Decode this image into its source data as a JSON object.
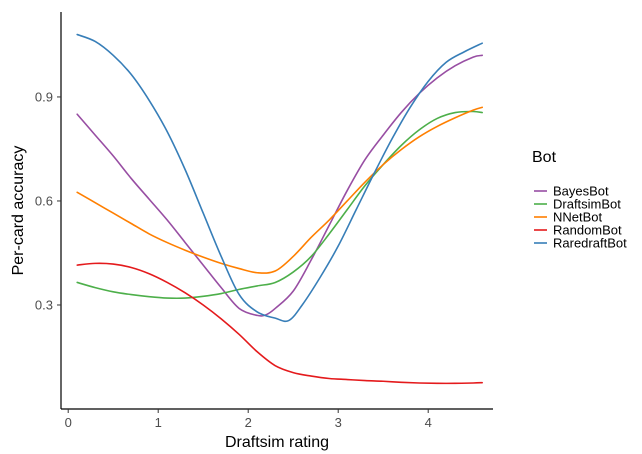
{
  "chart_data": {
    "type": "line",
    "title": "",
    "xlabel": "Draftsim rating",
    "ylabel": "Per-card accuracy",
    "xlim": [
      -0.08,
      4.72
    ],
    "ylim": [
      0.0,
      1.145
    ],
    "xticks": [
      0,
      1,
      2,
      3,
      4
    ],
    "yticks": [
      0.3,
      0.6,
      0.9
    ],
    "ytick_labels": [
      "0.3",
      "0.6",
      "0.9"
    ],
    "grid": false,
    "legend": {
      "title": "Bot",
      "placement": "right"
    },
    "series": [
      {
        "name": "BayesBot",
        "color": "#984ea3",
        "x": [
          0.1,
          0.3,
          0.5,
          0.7,
          0.9,
          1.1,
          1.3,
          1.5,
          1.7,
          1.9,
          2.1,
          2.2,
          2.3,
          2.5,
          2.7,
          2.9,
          3.1,
          3.3,
          3.5,
          3.7,
          3.9,
          4.1,
          4.3,
          4.5,
          4.6
        ],
        "y": [
          0.85,
          0.79,
          0.73,
          0.665,
          0.605,
          0.545,
          0.48,
          0.415,
          0.35,
          0.29,
          0.27,
          0.272,
          0.29,
          0.34,
          0.43,
          0.53,
          0.63,
          0.72,
          0.79,
          0.855,
          0.91,
          0.955,
          0.99,
          1.015,
          1.02
        ]
      },
      {
        "name": "DraftsimBot",
        "color": "#4daf4a",
        "x": [
          0.1,
          0.3,
          0.5,
          0.7,
          0.9,
          1.1,
          1.3,
          1.5,
          1.7,
          1.9,
          2.1,
          2.3,
          2.5,
          2.7,
          2.9,
          3.1,
          3.3,
          3.5,
          3.7,
          3.9,
          4.1,
          4.3,
          4.5,
          4.6
        ],
        "y": [
          0.365,
          0.35,
          0.338,
          0.33,
          0.324,
          0.32,
          0.32,
          0.325,
          0.333,
          0.345,
          0.355,
          0.365,
          0.395,
          0.44,
          0.505,
          0.575,
          0.645,
          0.705,
          0.76,
          0.805,
          0.838,
          0.855,
          0.858,
          0.855
        ]
      },
      {
        "name": "NNetBot",
        "color": "#ff7f00",
        "x": [
          0.1,
          0.3,
          0.5,
          0.7,
          0.9,
          1.1,
          1.3,
          1.5,
          1.7,
          1.9,
          2.1,
          2.3,
          2.5,
          2.7,
          2.9,
          3.1,
          3.3,
          3.5,
          3.7,
          3.9,
          4.1,
          4.3,
          4.5,
          4.6
        ],
        "y": [
          0.625,
          0.595,
          0.565,
          0.535,
          0.505,
          0.48,
          0.458,
          0.438,
          0.42,
          0.405,
          0.393,
          0.398,
          0.44,
          0.495,
          0.545,
          0.6,
          0.655,
          0.705,
          0.748,
          0.785,
          0.815,
          0.84,
          0.862,
          0.87
        ]
      },
      {
        "name": "RandomBot",
        "color": "#e41a1c",
        "x": [
          0.1,
          0.3,
          0.5,
          0.7,
          0.9,
          1.1,
          1.3,
          1.5,
          1.7,
          1.9,
          2.1,
          2.3,
          2.5,
          2.7,
          2.9,
          3.1,
          3.3,
          3.5,
          3.7,
          3.9,
          4.1,
          4.3,
          4.5,
          4.6
        ],
        "y": [
          0.415,
          0.42,
          0.418,
          0.408,
          0.39,
          0.365,
          0.335,
          0.3,
          0.26,
          0.215,
          0.165,
          0.125,
          0.105,
          0.095,
          0.088,
          0.085,
          0.082,
          0.08,
          0.077,
          0.075,
          0.074,
          0.074,
          0.075,
          0.076
        ]
      },
      {
        "name": "RaredraftBot",
        "color": "#377eb8",
        "x": [
          0.1,
          0.3,
          0.5,
          0.7,
          0.9,
          1.1,
          1.3,
          1.5,
          1.7,
          1.9,
          2.1,
          2.3,
          2.45,
          2.6,
          2.8,
          3.0,
          3.2,
          3.4,
          3.6,
          3.8,
          4.0,
          4.2,
          4.4,
          4.6
        ],
        "y": [
          1.08,
          1.06,
          1.02,
          0.965,
          0.89,
          0.8,
          0.69,
          0.565,
          0.44,
          0.33,
          0.28,
          0.262,
          0.255,
          0.3,
          0.38,
          0.47,
          0.575,
          0.68,
          0.78,
          0.87,
          0.945,
          1.0,
          1.03,
          1.055
        ]
      }
    ]
  }
}
